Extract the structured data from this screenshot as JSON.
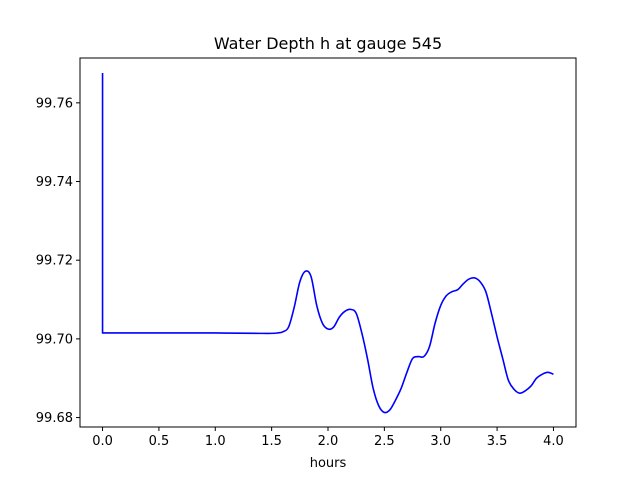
{
  "chart_data": {
    "type": "line",
    "title": "Water Depth h at gauge 545",
    "xlabel": "hours",
    "ylabel": "",
    "xlim": [
      -0.2,
      4.2
    ],
    "ylim": [
      99.6776,
      99.7714
    ],
    "grid": false,
    "legend": "none",
    "x_ticks": [
      0.0,
      0.5,
      1.0,
      1.5,
      2.0,
      2.5,
      3.0,
      3.5,
      4.0
    ],
    "x_tick_labels": [
      "0.0",
      "0.5",
      "1.0",
      "1.5",
      "2.0",
      "2.5",
      "3.0",
      "3.5",
      "4.0"
    ],
    "y_ticks": [
      99.68,
      99.7,
      99.72,
      99.74,
      99.76
    ],
    "y_tick_labels": [
      "99.68",
      "99.70",
      "99.72",
      "99.74",
      "99.76"
    ],
    "series": [
      {
        "color": "#0000ff",
        "x": [
          0.0,
          0.0,
          0.0,
          0.5,
          1.0,
          1.4,
          1.5,
          1.55,
          1.6,
          1.65,
          1.7,
          1.75,
          1.8,
          1.85,
          1.9,
          1.95,
          2.0,
          2.05,
          2.1,
          2.15,
          2.2,
          2.25,
          2.3,
          2.35,
          2.4,
          2.45,
          2.5,
          2.55,
          2.6,
          2.65,
          2.7,
          2.75,
          2.8,
          2.85,
          2.9,
          2.95,
          3.0,
          3.05,
          3.1,
          3.15,
          3.2,
          3.25,
          3.3,
          3.35,
          3.4,
          3.45,
          3.5,
          3.55,
          3.6,
          3.65,
          3.7,
          3.75,
          3.8,
          3.85,
          3.9,
          3.95,
          4.0
        ],
        "y": [
          99.7676,
          99.7015,
          99.7015,
          99.7015,
          99.7015,
          99.7014,
          99.7014,
          99.7015,
          99.7018,
          99.703,
          99.708,
          99.7145,
          99.7172,
          99.7158,
          99.7085,
          99.704,
          99.7025,
          99.703,
          99.7055,
          99.707,
          99.7075,
          99.7065,
          99.7015,
          99.695,
          99.6875,
          99.683,
          99.6813,
          99.682,
          99.6845,
          99.6875,
          99.6915,
          99.695,
          99.6955,
          99.6955,
          99.698,
          99.704,
          99.7085,
          99.711,
          99.712,
          99.7125,
          99.714,
          99.7152,
          99.7155,
          99.7145,
          99.712,
          99.7065,
          99.7005,
          99.695,
          99.6895,
          99.6872,
          99.6862,
          99.6868,
          99.688,
          99.69,
          99.691,
          99.6915,
          99.691
        ]
      }
    ]
  }
}
